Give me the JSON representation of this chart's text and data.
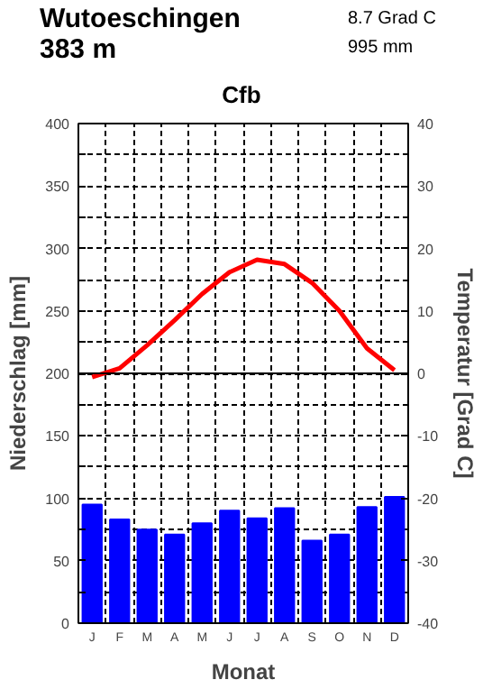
{
  "chart_data": {
    "type": "bar",
    "title": "Wutoeschingen",
    "subtitle": "383 m",
    "annotations": [
      "8.7 Grad C",
      "995 mm",
      "Cfb"
    ],
    "xlabel": "Monat",
    "ylabel": "Niederschlag [mm]",
    "y2label": "Temperatur [Grad C]",
    "categories": [
      "J",
      "F",
      "M",
      "A",
      "M",
      "J",
      "J",
      "A",
      "S",
      "O",
      "N",
      "D"
    ],
    "series": [
      {
        "color": "#0000ff",
        "values": [
          95,
          83,
          75,
          71,
          80,
          90,
          84,
          92,
          66,
          71,
          93,
          101
        ]
      },
      {
        "type": "line",
        "axis": "y2",
        "color": "#ff0000",
        "values": [
          -0.6,
          0.8,
          4.5,
          8.5,
          12.7,
          16.2,
          18.2,
          17.5,
          14.5,
          10,
          4,
          0.5
        ]
      }
    ],
    "ylim": [
      0,
      400
    ],
    "yticks": [
      0,
      {
        "value": 25,
        "label": null
      },
      50,
      {
        "value": 75,
        "label": null
      },
      100,
      {
        "value": 125,
        "label": null
      },
      150,
      {
        "value": 175,
        "label": null
      },
      200,
      {
        "value": 225,
        "label": null
      },
      250,
      {
        "value": 275,
        "label": null
      },
      300,
      {
        "value": 325,
        "label": null
      },
      350,
      {
        "value": 375,
        "label": null
      },
      400
    ],
    "y2lim": [
      -40,
      40
    ],
    "y2ticks": [
      -40,
      -30,
      -20,
      -10,
      0,
      10,
      20,
      30,
      40
    ],
    "ref_lines": [
      {
        "axis": "y2",
        "value": 0,
        "color": "#000000",
        "line_style": "solid"
      }
    ],
    "grid": true
  }
}
